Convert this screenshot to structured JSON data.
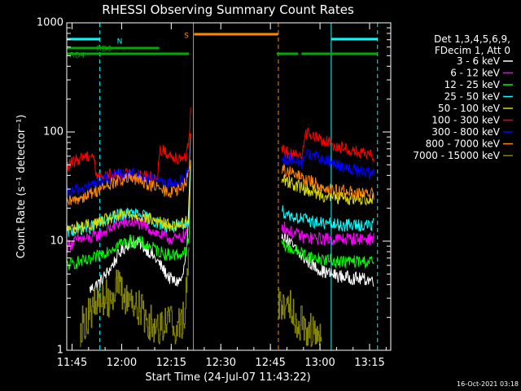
{
  "chart_data": {
    "type": "line",
    "title": "RHESSI Observing Summary Count Rates",
    "xlabel": "Start Time (24-Jul-07 11:43:22)",
    "ylabel": "Count Rate (s⁻¹ detector⁻¹)",
    "yscale": "log",
    "x_unit": "minutes after 11:43:22",
    "xlim": [
      0,
      98
    ],
    "ylim": [
      1,
      1000
    ],
    "xticks": [
      {
        "x": 1.6,
        "label": "11:45"
      },
      {
        "x": 16.6,
        "label": "12:00"
      },
      {
        "x": 31.6,
        "label": "12:15"
      },
      {
        "x": 46.6,
        "label": "12:30"
      },
      {
        "x": 61.6,
        "label": "12:45"
      },
      {
        "x": 76.6,
        "label": "13:00"
      },
      {
        "x": 91.6,
        "label": "13:15"
      }
    ],
    "yticks": [
      {
        "y": 1,
        "label": "1"
      },
      {
        "y": 10,
        "label": "10"
      },
      {
        "y": 100,
        "label": "100"
      },
      {
        "y": 1000,
        "label": "1000"
      }
    ],
    "legend": {
      "placement": "right",
      "header": [
        "Det 1,3,4,5,6,9,",
        "FDecim 1, Att 0"
      ],
      "entries": [
        {
          "label": "3 - 6 keV",
          "color": "#ffffff"
        },
        {
          "label": "6 - 12 keV",
          "color": "#ff00ff"
        },
        {
          "label": "12 - 25 keV",
          "color": "#00ff00"
        },
        {
          "label": "25 - 50 keV",
          "color": "#00ffff"
        },
        {
          "label": "50 - 100 keV",
          "color": "#dddd00"
        },
        {
          "label": "100 - 300 keV",
          "color": "#ff0000"
        },
        {
          "label": "300 - 800 keV",
          "color": "#0000ff"
        },
        {
          "label": "800 - 7000 keV",
          "color": "#ff8800"
        },
        {
          "label": "7000 - 15000 keV",
          "color": "#888800"
        }
      ]
    },
    "series": [
      {
        "name": "3 - 6 keV",
        "color": "#ffffff",
        "segments": [
          [
            [
              7,
              3.6
            ],
            [
              10,
              4.2
            ],
            [
              13,
              5.5
            ],
            [
              16,
              7.8
            ],
            [
              19,
              9.8
            ],
            [
              22,
              9.6
            ],
            [
              25,
              8.0
            ],
            [
              28,
              6.2
            ],
            [
              31,
              4.6
            ],
            [
              33,
              4.2
            ],
            [
              35,
              4.5
            ],
            [
              36.5,
              9.5
            ],
            [
              37.5,
              55
            ]
          ],
          [
            [
              65,
              12
            ],
            [
              67,
              10
            ],
            [
              69,
              8.5
            ],
            [
              71,
              7.2
            ],
            [
              73,
              6.5
            ],
            [
              75,
              5.8
            ],
            [
              78,
              5.2
            ],
            [
              82,
              4.8
            ],
            [
              86,
              4.6
            ],
            [
              89,
              4.5
            ],
            [
              93,
              4.4
            ]
          ]
        ]
      },
      {
        "name": "6 - 12 keV",
        "color": "#ff00ff",
        "segments": [
          [
            [
              0,
              9
            ],
            [
              4,
              10.5
            ],
            [
              7,
              10.5
            ],
            [
              10,
              11.5
            ],
            [
              13,
              13
            ],
            [
              16,
              14.5
            ],
            [
              19,
              15
            ],
            [
              22,
              14.5
            ],
            [
              25,
              13
            ],
            [
              28,
              11.5
            ],
            [
              31,
              10.5
            ],
            [
              34,
              10.5
            ],
            [
              36,
              11.5
            ],
            [
              37,
              14
            ],
            [
              37.5,
              60
            ]
          ],
          [
            [
              65,
              14
            ],
            [
              68,
              12
            ],
            [
              71,
              11
            ],
            [
              75,
              10.5
            ],
            [
              78,
              10.5
            ],
            [
              82,
              10.5
            ],
            [
              86,
              10.5
            ],
            [
              89,
              10.5
            ],
            [
              93,
              10.5
            ]
          ]
        ]
      },
      {
        "name": "12 - 25 keV",
        "color": "#00ff00",
        "segments": [
          [
            [
              0,
              6
            ],
            [
              4,
              6.5
            ],
            [
              7,
              6.5
            ],
            [
              10,
              7.5
            ],
            [
              13,
              8.5
            ],
            [
              16,
              9.5
            ],
            [
              19,
              10
            ],
            [
              22,
              9.8
            ],
            [
              25,
              9
            ],
            [
              28,
              8
            ],
            [
              31,
              7.5
            ],
            [
              34,
              7.5
            ],
            [
              36,
              8
            ],
            [
              37,
              10
            ],
            [
              37.5,
              55
            ]
          ],
          [
            [
              65,
              9.5
            ],
            [
              68,
              8.5
            ],
            [
              71,
              7.8
            ],
            [
              75,
              7
            ],
            [
              78,
              6.8
            ],
            [
              82,
              6.5
            ],
            [
              86,
              6.5
            ],
            [
              89,
              6.5
            ],
            [
              93,
              6.5
            ]
          ]
        ]
      },
      {
        "name": "25 - 50 keV",
        "color": "#00ffff",
        "segments": [
          [
            [
              0,
              12
            ],
            [
              4,
              13
            ],
            [
              7,
              13.5
            ],
            [
              10,
              14.5
            ],
            [
              13,
              16
            ],
            [
              16,
              17.5
            ],
            [
              19,
              18
            ],
            [
              22,
              17.5
            ],
            [
              25,
              16
            ],
            [
              28,
              14.5
            ],
            [
              31,
              13.5
            ],
            [
              34,
              13.5
            ],
            [
              36,
              14
            ],
            [
              37,
              16
            ],
            [
              37.5,
              60
            ]
          ],
          [
            [
              65,
              19
            ],
            [
              68,
              17
            ],
            [
              71,
              16
            ],
            [
              75,
              15
            ],
            [
              78,
              14.5
            ],
            [
              82,
              14
            ],
            [
              86,
              14
            ],
            [
              89,
              14
            ],
            [
              93,
              14
            ]
          ]
        ]
      },
      {
        "name": "50 - 100 keV",
        "color": "#dddd00",
        "segments": [
          [
            [
              0,
              13
            ],
            [
              4,
              13.5
            ],
            [
              7,
              14
            ],
            [
              10,
              15
            ],
            [
              13,
              16
            ],
            [
              16,
              17
            ],
            [
              19,
              17.5
            ],
            [
              22,
              17
            ],
            [
              25,
              16
            ],
            [
              28,
              15
            ],
            [
              31,
              14
            ],
            [
              34,
              14
            ],
            [
              36,
              15
            ],
            [
              37,
              18
            ],
            [
              37.5,
              62
            ]
          ],
          [
            [
              65,
              38
            ],
            [
              68,
              34
            ],
            [
              71,
              31
            ],
            [
              75,
              28
            ],
            [
              78,
              26
            ],
            [
              82,
              25
            ],
            [
              86,
              24.5
            ],
            [
              89,
              24.5
            ],
            [
              93,
              24.5
            ]
          ]
        ]
      },
      {
        "name": "100 - 300 keV",
        "color": "#ff0000",
        "segments": [
          [
            [
              0,
              48
            ],
            [
              3,
              55
            ],
            [
              5,
              60
            ],
            [
              8,
              62
            ],
            [
              9,
              40
            ],
            [
              13,
              40
            ],
            [
              16,
              41
            ],
            [
              19,
              41
            ],
            [
              22,
              40
            ],
            [
              25,
              39
            ],
            [
              27.5,
              38
            ],
            [
              28,
              70
            ],
            [
              31,
              62
            ],
            [
              34,
              58
            ],
            [
              36,
              60
            ],
            [
              37,
              80
            ],
            [
              37.5,
              160
            ]
          ],
          [
            [
              65,
              68
            ],
            [
              68,
              62
            ],
            [
              71,
              58
            ],
            [
              72,
              100
            ],
            [
              75,
              90
            ],
            [
              78,
              82
            ],
            [
              82,
              74
            ],
            [
              86,
              68
            ],
            [
              89,
              63
            ],
            [
              93,
              60
            ]
          ]
        ]
      },
      {
        "name": "300 - 800 keV",
        "color": "#0000ff",
        "segments": [
          [
            [
              0,
              27
            ],
            [
              4,
              30
            ],
            [
              7,
              32
            ],
            [
              10,
              35
            ],
            [
              13,
              38
            ],
            [
              16,
              41
            ],
            [
              19,
              42
            ],
            [
              22,
              40
            ],
            [
              25,
              37
            ],
            [
              28,
              34
            ],
            [
              31,
              33
            ],
            [
              34,
              34
            ],
            [
              36,
              40
            ],
            [
              37,
              50
            ],
            [
              37.5,
              110
            ]
          ],
          [
            [
              65,
              58
            ],
            [
              68,
              55
            ],
            [
              71,
              50
            ],
            [
              72,
              65
            ],
            [
              75,
              60
            ],
            [
              78,
              55
            ],
            [
              82,
              50
            ],
            [
              86,
              46
            ],
            [
              89,
              43
            ],
            [
              93,
              41
            ]
          ]
        ]
      },
      {
        "name": "800 - 7000 keV",
        "color": "#ff8800",
        "segments": [
          [
            [
              0,
              22
            ],
            [
              4,
              25
            ],
            [
              7,
              27
            ],
            [
              10,
              30
            ],
            [
              13,
              33
            ],
            [
              16,
              36
            ],
            [
              19,
              37
            ],
            [
              22,
              36
            ],
            [
              25,
              33
            ],
            [
              28,
              30
            ],
            [
              31,
              28
            ],
            [
              34,
              29
            ],
            [
              36,
              34
            ],
            [
              37,
              45
            ],
            [
              37.5,
              100
            ]
          ],
          [
            [
              65,
              46
            ],
            [
              68,
              42
            ],
            [
              71,
              38
            ],
            [
              75,
              34
            ],
            [
              78,
              31
            ],
            [
              82,
              29
            ],
            [
              86,
              28
            ],
            [
              89,
              27
            ],
            [
              93,
              27
            ]
          ]
        ]
      },
      {
        "name": "7000 - 15000 keV",
        "color": "#888800",
        "segments": [
          [
            [
              4,
              1.6
            ],
            [
              7,
              2.2
            ],
            [
              9,
              2.6
            ],
            [
              11,
              3.0
            ],
            [
              13,
              3.0
            ],
            [
              15,
              4.2
            ],
            [
              17,
              3.0
            ],
            [
              19,
              3.0
            ],
            [
              21,
              2.6
            ],
            [
              23,
              2.2
            ],
            [
              25,
              1.8
            ],
            [
              27,
              1.6
            ],
            [
              29,
              1.8
            ],
            [
              31,
              2.0
            ],
            [
              33,
              1.6
            ],
            [
              35,
              1.8
            ],
            [
              36,
              3
            ],
            [
              37,
              12
            ]
          ],
          [
            [
              64,
              2.5
            ],
            [
              66,
              2.8
            ],
            [
              68,
              2.6
            ],
            [
              69,
              2.0
            ],
            [
              71,
              1.8
            ],
            [
              73,
              1.6
            ],
            [
              75,
              1.4
            ],
            [
              77,
              1.2
            ]
          ]
        ]
      }
    ],
    "flag_bars": [
      {
        "label": "N",
        "color": "#00ffff",
        "ranges": [
          [
            0,
            10
          ],
          [
            80,
            94
          ]
        ]
      },
      {
        "label": "S",
        "color": "#ff8800",
        "ranges": [
          [
            38.5,
            64
          ]
        ]
      },
      {
        "label": "RD0",
        "color": "#00aa00",
        "ranges": [
          [
            0,
            28
          ]
        ]
      },
      {
        "label": "RD4",
        "color": "#00aa00",
        "ranges": [
          [
            0,
            37
          ],
          [
            63.5,
            70
          ],
          [
            71,
            94
          ]
        ]
      }
    ],
    "markers": [
      {
        "x": 0,
        "color": "#00ffff",
        "style": "solid"
      },
      {
        "x": 10,
        "color": "#00ffff",
        "style": "dashed"
      },
      {
        "x": 80,
        "color": "#00ffff",
        "style": "solid"
      },
      {
        "x": 94,
        "color": "#00ffff",
        "style": "dashed"
      },
      {
        "x": 38.3,
        "color": "#ff8800",
        "style": "solid"
      },
      {
        "x": 64,
        "color": "#ff8800",
        "style": "dashed"
      }
    ],
    "timestamp": "16-Oct-2021 03:18",
    "grid": false
  }
}
